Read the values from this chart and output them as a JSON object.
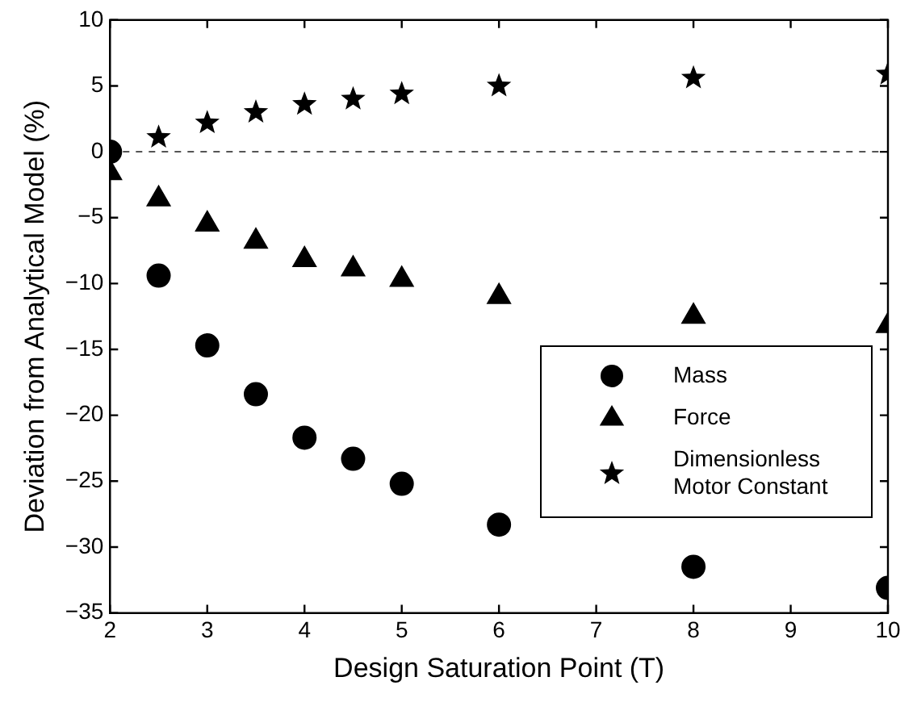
{
  "chart_data": {
    "type": "scatter",
    "xlabel": "Design Saturation Point (T)",
    "ylabel": "Deviation from Analytical Model (%)",
    "x": [
      2,
      2.5,
      3,
      3.5,
      4,
      4.5,
      5,
      6,
      8,
      10
    ],
    "series": [
      {
        "name": "Mass",
        "color": "#000000",
        "marker": "circle",
        "values": [
          0,
          -9.4,
          -14.7,
          -18.4,
          -21.7,
          -23.3,
          -25.2,
          -28.3,
          -31.5,
          -33.1
        ]
      },
      {
        "name": "Force",
        "color": "#000000",
        "marker": "triangle",
        "values": [
          -1.6,
          -3.6,
          -5.5,
          -6.8,
          -8.2,
          -8.9,
          -9.7,
          -11.0,
          -12.5,
          -13.2
        ]
      },
      {
        "name": "Dimensionless\nMotor Constant",
        "color": "#000000",
        "marker": "star",
        "values": [
          null,
          1.1,
          2.2,
          3.0,
          3.6,
          4.0,
          4.4,
          5.0,
          5.6,
          5.9
        ]
      }
    ],
    "xlim": [
      2,
      10
    ],
    "xticks": [
      2,
      3,
      4,
      5,
      6,
      7,
      8,
      9,
      10
    ],
    "ylim": [
      -35,
      10
    ],
    "yticks": [
      -35,
      -30,
      -25,
      -20,
      -15,
      -10,
      -5,
      0,
      5,
      10
    ],
    "ref_lines": [
      {
        "axis": "y",
        "value": 0,
        "label": null,
        "color": "#555555",
        "line_style": "dashed"
      }
    ],
    "grid": false,
    "legend": "right"
  }
}
